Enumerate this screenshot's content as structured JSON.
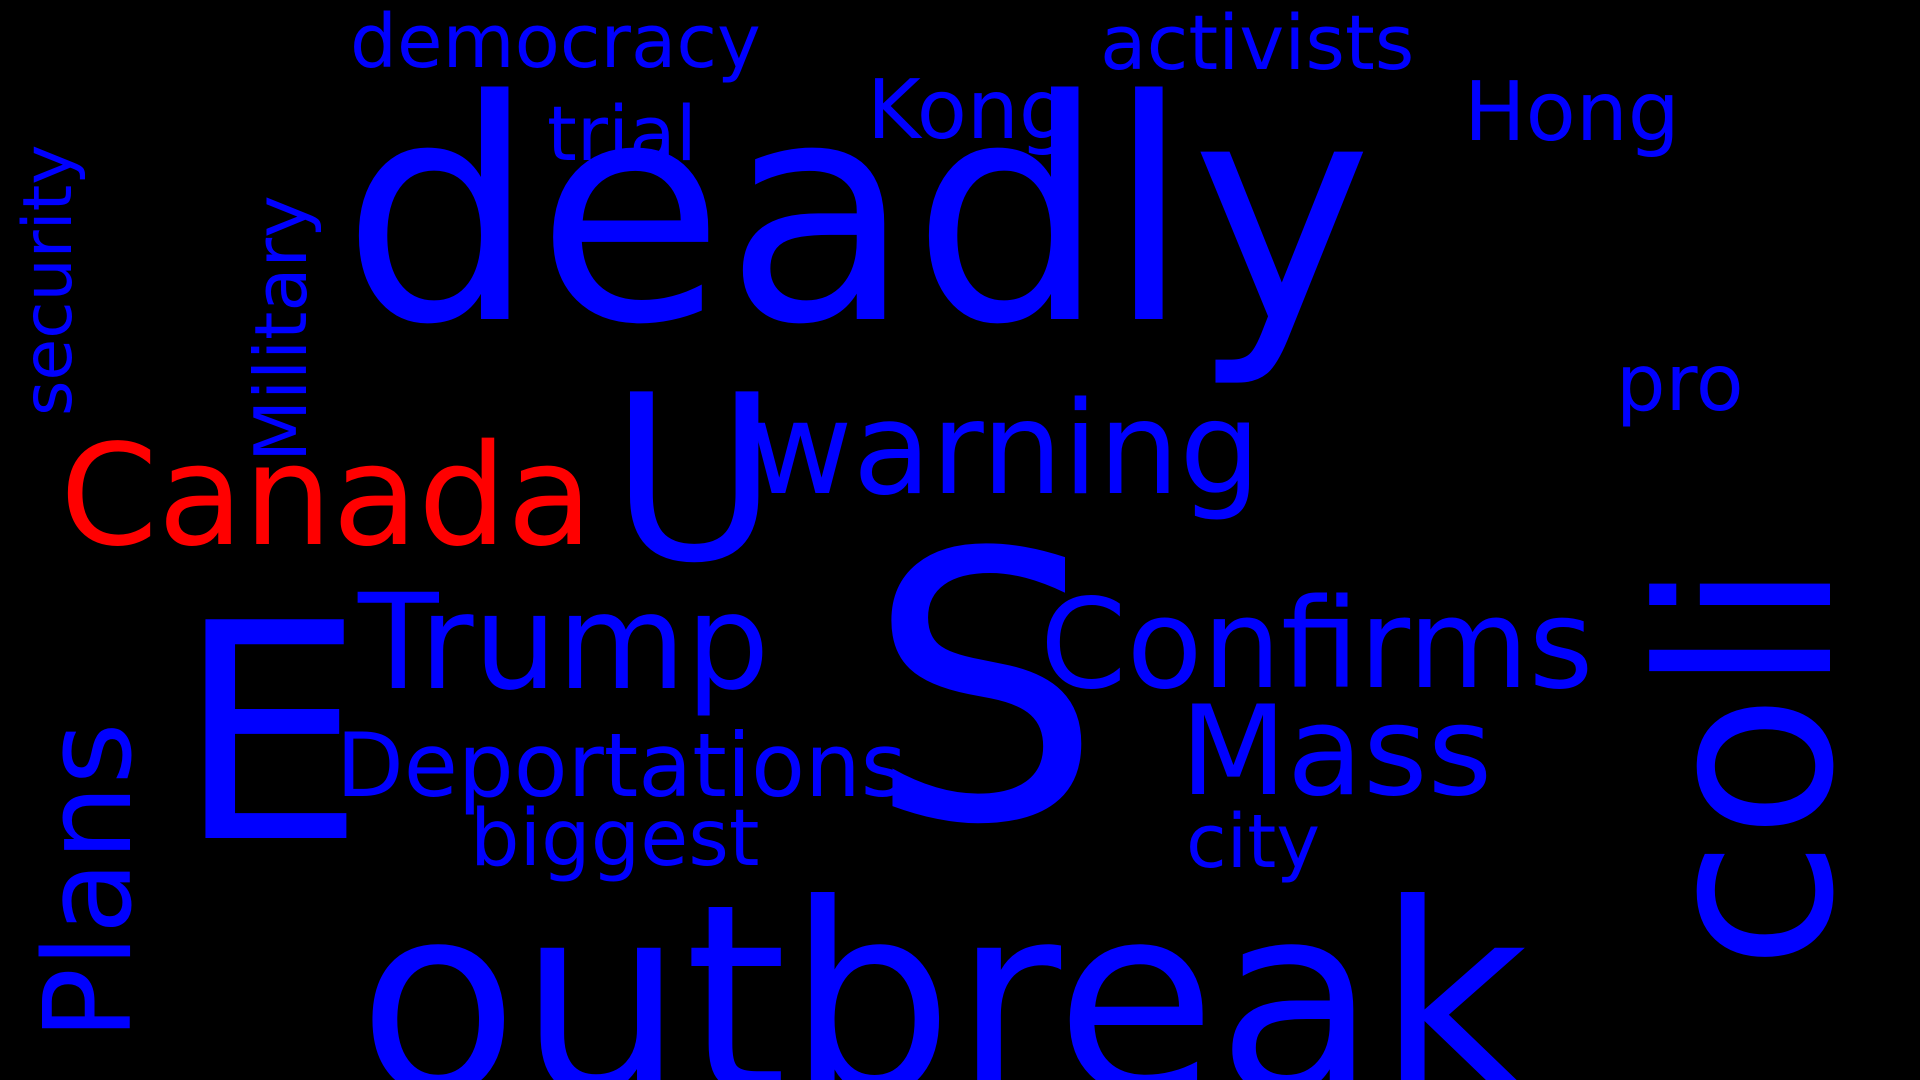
{
  "colors": {
    "background": "#000000",
    "primary": "#0000ff",
    "highlight": "#ff0000"
  },
  "words": {
    "deadly": "deadly",
    "outbreak": "outbreak",
    "s": "S",
    "e": "E",
    "u": "U",
    "coli": "coli",
    "warning": "warning",
    "canada": "Canada",
    "trump": "Trump",
    "confirms": "Confirms",
    "mass": "Mass",
    "deportations": "Deportations",
    "plans": "Plans",
    "military": "Military",
    "security": "security",
    "democracy": "democracy",
    "activists": "activists",
    "trial": "trial",
    "kong": "Kong",
    "hong": "Hong",
    "pro": "pro",
    "biggest": "biggest",
    "city": "city"
  }
}
